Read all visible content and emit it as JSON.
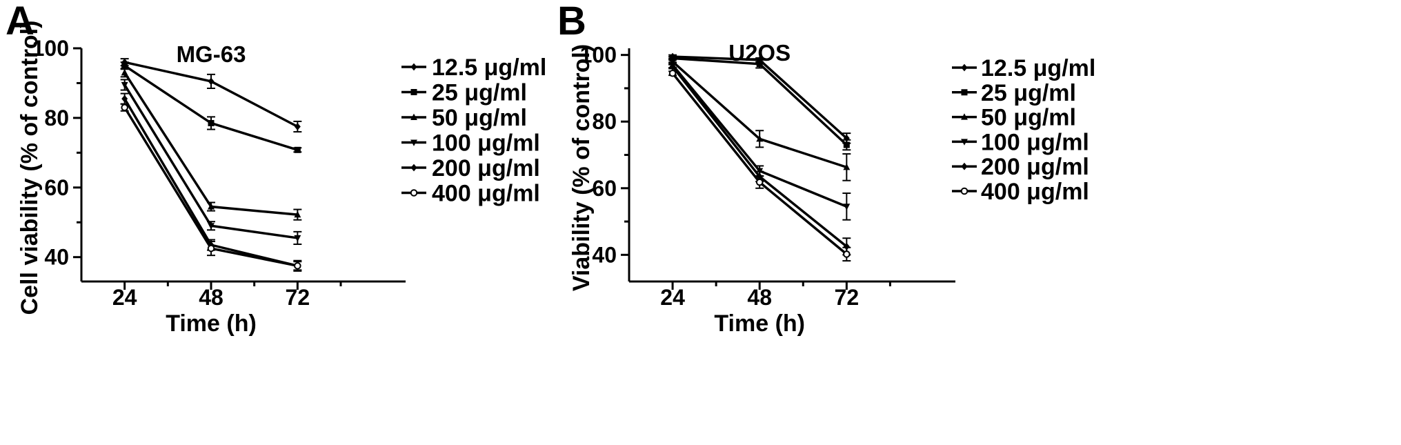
{
  "chart_data": [
    {
      "panel": "A",
      "type": "line",
      "title": "MG-63",
      "xlabel": "Time (h)",
      "ylabel": "Cell viability (% of control)",
      "x": [
        24,
        48,
        72
      ],
      "x_ticks": [
        "24",
        "48",
        "72"
      ],
      "xlim": [
        12,
        102
      ],
      "ylim": [
        33,
        100
      ],
      "y_ticks": [
        40,
        60,
        80,
        100
      ],
      "legend_position": "right",
      "series": [
        {
          "name": "12.5 μg/ml",
          "marker": "diamond",
          "values": [
            96,
            90.5,
            77.5
          ],
          "err": [
            1.0,
            2.0,
            1.5
          ]
        },
        {
          "name": "25 μg/ml",
          "marker": "square",
          "values": [
            95,
            78.5,
            70.8
          ],
          "err": [
            1.0,
            1.8,
            0.6
          ]
        },
        {
          "name": "50 μg/ml",
          "marker": "triangle-up",
          "values": [
            93,
            54.5,
            52.2
          ],
          "err": [
            1.2,
            1.2,
            1.5
          ]
        },
        {
          "name": "100 μg/ml",
          "marker": "triangle-down",
          "values": [
            89.5,
            49,
            45.5
          ],
          "err": [
            1.5,
            1.2,
            1.8
          ]
        },
        {
          "name": "200 μg/ml",
          "marker": "diamond",
          "values": [
            85.5,
            43.5,
            37.5
          ],
          "err": [
            1.5,
            1.5,
            1.2
          ]
        },
        {
          "name": "400 μg/ml",
          "marker": "circle-open",
          "values": [
            83,
            42.5,
            37.5
          ],
          "err": [
            1.0,
            2.0,
            1.5
          ]
        }
      ]
    },
    {
      "panel": "B",
      "type": "line",
      "title": "U2OS",
      "xlabel": "Time (h)",
      "ylabel": "Viability (% of control)",
      "x": [
        24,
        48,
        72
      ],
      "x_ticks": [
        "24",
        "48",
        "72"
      ],
      "xlim": [
        12,
        102
      ],
      "ylim": [
        32,
        102
      ],
      "y_ticks": [
        40,
        60,
        80,
        100
      ],
      "legend_position": "right",
      "series": [
        {
          "name": "12.5 μg/ml",
          "marker": "diamond",
          "values": [
            99.5,
            98.5,
            75
          ],
          "err": [
            0.5,
            0.6,
            1.5
          ]
        },
        {
          "name": "25 μg/ml",
          "marker": "square",
          "values": [
            99,
            97.3,
            73
          ],
          "err": [
            0.5,
            1.2,
            1.5
          ]
        },
        {
          "name": "50 μg/ml",
          "marker": "triangle-up",
          "values": [
            98,
            74.8,
            66.3
          ],
          "err": [
            0.6,
            2.5,
            4.0
          ]
        },
        {
          "name": "100 μg/ml",
          "marker": "triangle-down",
          "values": [
            97,
            65.2,
            54.5
          ],
          "err": [
            0.8,
            1.5,
            4.0
          ]
        },
        {
          "name": "200 μg/ml",
          "marker": "diamond",
          "values": [
            96.5,
            63.5,
            42.5
          ],
          "err": [
            0.6,
            1.5,
            2.5
          ]
        },
        {
          "name": "400 μg/ml",
          "marker": "circle-open",
          "values": [
            94.5,
            61.8,
            40.2
          ],
          "err": [
            0.6,
            1.8,
            2.0
          ]
        }
      ]
    }
  ]
}
